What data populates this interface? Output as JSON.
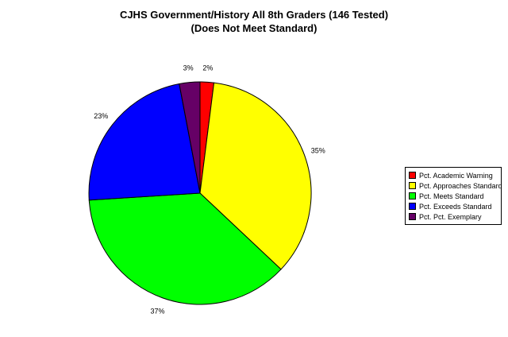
{
  "title": {
    "line1": "CJHS Government/History All 8th Graders (146 Tested)",
    "line2": "(Does Not Meet Standard)"
  },
  "chart_data": {
    "type": "pie",
    "title": "CJHS Government/History All 8th Graders (146 Tested)",
    "subtitle": "(Does Not Meet Standard)",
    "start": "12 o'clock, clockwise",
    "legend_position": "right",
    "slices": [
      {
        "name": "Pct. Academic Warning",
        "value": 2,
        "label": "2%",
        "color": "#ff0000"
      },
      {
        "name": "Pct. Approaches Standard",
        "value": 35,
        "label": "35%",
        "color": "#ffff00"
      },
      {
        "name": "Pct. Meets Standard",
        "value": 37,
        "label": "37%",
        "color": "#00ff00"
      },
      {
        "name": "Pct. Exceeds Standard",
        "value": 23,
        "label": "23%",
        "color": "#0000ff"
      },
      {
        "name": "Pct. Pct. Exemplary",
        "value": 3,
        "label": "3%",
        "color": "#660066"
      }
    ]
  }
}
